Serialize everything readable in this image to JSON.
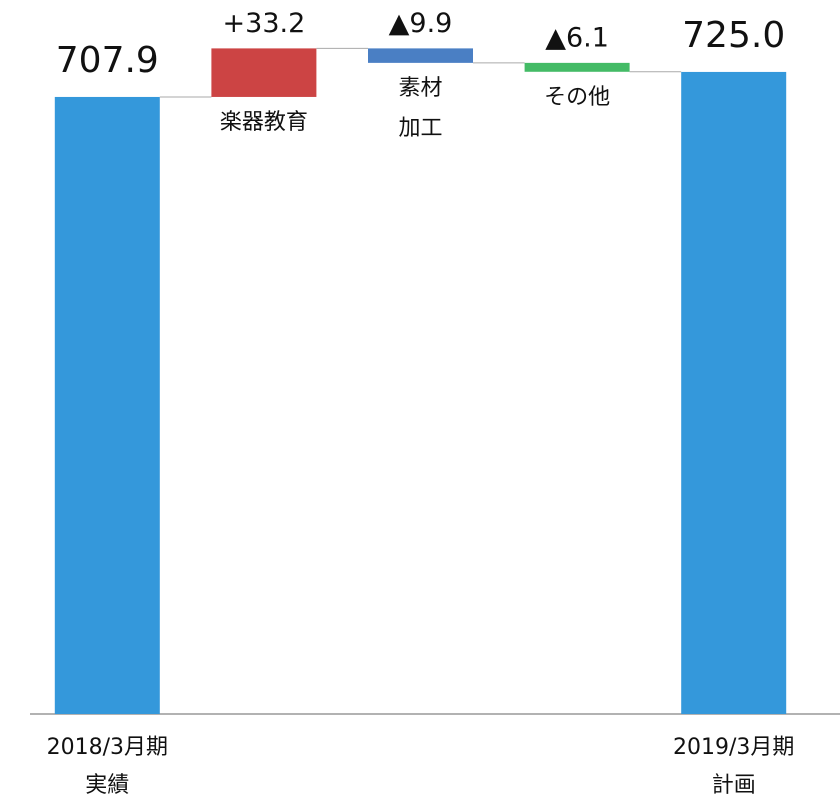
{
  "chart_data": {
    "type": "waterfall",
    "categories": [
      "2018/3月期\n実績",
      "楽器教育",
      "素材\n加工",
      "その他",
      "2019/3月期\n計画"
    ],
    "values": [
      707.9,
      33.2,
      -9.9,
      -6.1,
      725.0
    ],
    "value_labels": [
      "707.9",
      "+33.2",
      "▲9.9",
      "▲6.1",
      "725.0"
    ],
    "totals": [
      true,
      false,
      false,
      false,
      true
    ],
    "colors": [
      "#3498db",
      "#cc4444",
      "#4a7fc4",
      "#44bb66",
      "#3498db"
    ],
    "ylim": [
      286,
      740
    ]
  }
}
